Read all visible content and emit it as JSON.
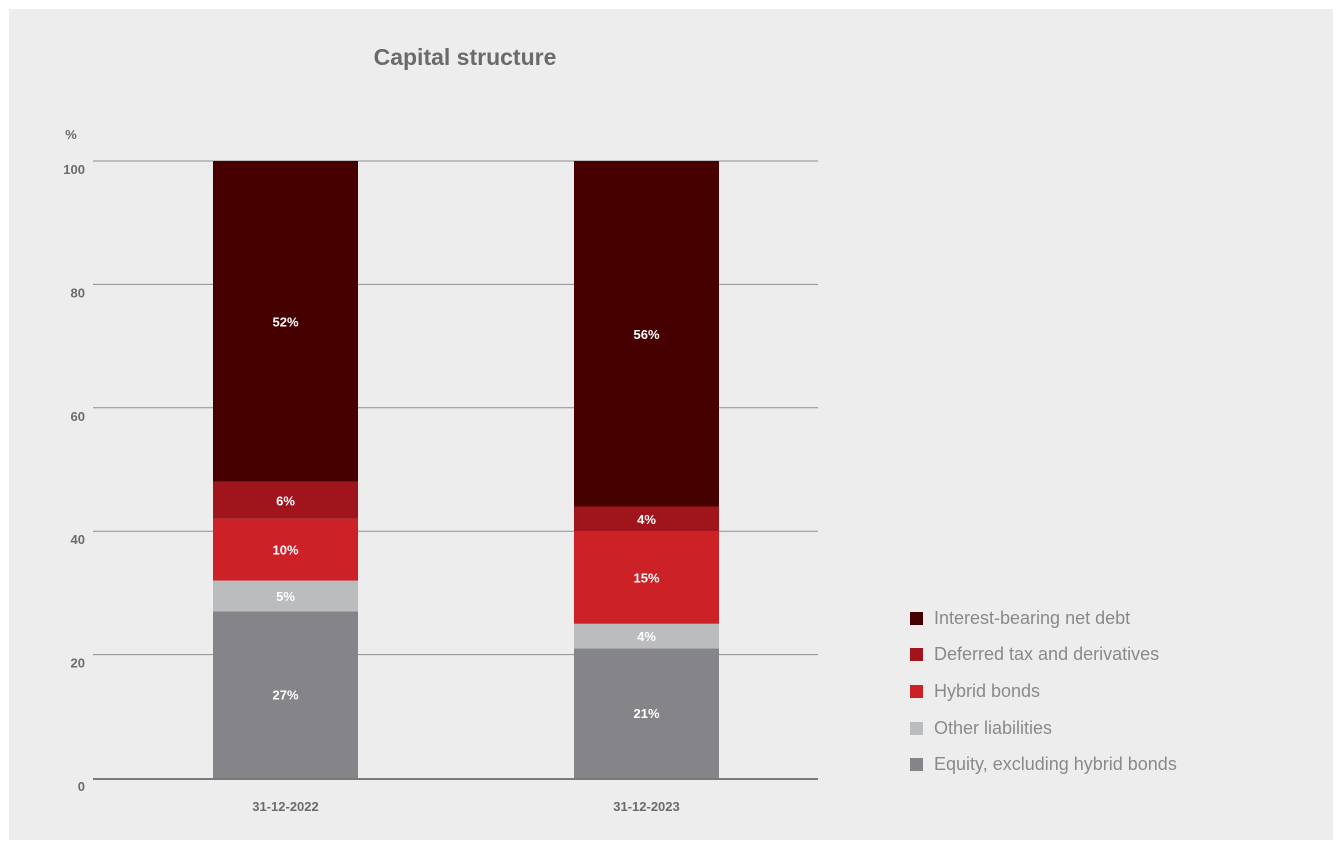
{
  "chart_data": {
    "type": "bar",
    "stacked": true,
    "title": "Capital structure",
    "ylabel": "%",
    "ylim": [
      0,
      100
    ],
    "yticks": [
      0,
      20,
      40,
      60,
      80,
      100
    ],
    "categories": [
      "31-12-2022",
      "31-12-2023"
    ],
    "series": [
      {
        "name": "Equity, excluding hybrid bonds",
        "color": "#858589",
        "values": [
          27,
          21
        ],
        "labels": [
          "27%",
          "21%"
        ]
      },
      {
        "name": "Other liabilities",
        "color": "#bbbcbe",
        "values": [
          5,
          4
        ],
        "labels": [
          "5%",
          "4%"
        ]
      },
      {
        "name": "Hybrid bonds",
        "color": "#cc2127",
        "values": [
          10,
          15
        ],
        "labels": [
          "10%",
          "15%"
        ]
      },
      {
        "name": "Deferred tax and derivatives",
        "color": "#a0151b",
        "values": [
          6,
          4
        ],
        "labels": [
          "6%",
          "4%"
        ]
      },
      {
        "name": "Interest-bearing net debt",
        "color": "#470000",
        "values": [
          52,
          56
        ],
        "labels": [
          "52%",
          "56%"
        ]
      }
    ],
    "grid": true,
    "legend_position": "right"
  }
}
